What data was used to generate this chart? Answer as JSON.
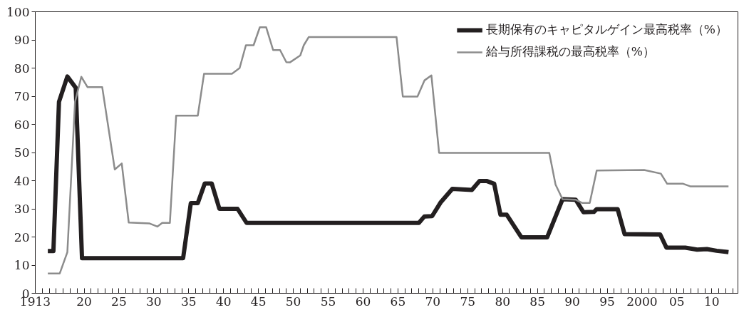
{
  "chart_data": {
    "type": "line",
    "xlim": [
      1913,
      2013.75
    ],
    "ylim": [
      0,
      100
    ],
    "yticks": [
      0,
      10,
      20,
      30,
      40,
      50,
      60,
      70,
      80,
      90,
      100
    ],
    "xticks": [
      {
        "value": 1913,
        "label": "1913"
      },
      {
        "value": 1914,
        "label": null
      },
      {
        "value": 1915,
        "label": null
      },
      {
        "value": 1916,
        "label": null
      },
      {
        "value": 1917,
        "label": null
      },
      {
        "value": 1918,
        "label": null
      },
      {
        "value": 1919,
        "label": null
      },
      {
        "value": 1920,
        "label": "20"
      },
      {
        "value": 1921,
        "label": null
      },
      {
        "value": 1922,
        "label": null
      },
      {
        "value": 1923,
        "label": null
      },
      {
        "value": 1924,
        "label": null
      },
      {
        "value": 1925,
        "label": "25"
      },
      {
        "value": 1926,
        "label": null
      },
      {
        "value": 1927,
        "label": null
      },
      {
        "value": 1928,
        "label": null
      },
      {
        "value": 1929,
        "label": null
      },
      {
        "value": 1930,
        "label": "30"
      },
      {
        "value": 1931,
        "label": null
      },
      {
        "value": 1932,
        "label": null
      },
      {
        "value": 1933,
        "label": null
      },
      {
        "value": 1934,
        "label": null
      },
      {
        "value": 1935,
        "label": "35"
      },
      {
        "value": 1936,
        "label": null
      },
      {
        "value": 1937,
        "label": null
      },
      {
        "value": 1938,
        "label": null
      },
      {
        "value": 1939,
        "label": null
      },
      {
        "value": 1940,
        "label": "40"
      },
      {
        "value": 1941,
        "label": null
      },
      {
        "value": 1942,
        "label": null
      },
      {
        "value": 1943,
        "label": null
      },
      {
        "value": 1944,
        "label": null
      },
      {
        "value": 1945,
        "label": "45"
      },
      {
        "value": 1946,
        "label": null
      },
      {
        "value": 1947,
        "label": null
      },
      {
        "value": 1948,
        "label": null
      },
      {
        "value": 1949,
        "label": null
      },
      {
        "value": 1950,
        "label": "50"
      },
      {
        "value": 1951,
        "label": null
      },
      {
        "value": 1952,
        "label": null
      },
      {
        "value": 1953,
        "label": null
      },
      {
        "value": 1954,
        "label": null
      },
      {
        "value": 1955,
        "label": "55"
      },
      {
        "value": 1956,
        "label": null
      },
      {
        "value": 1957,
        "label": null
      },
      {
        "value": 1958,
        "label": null
      },
      {
        "value": 1959,
        "label": null
      },
      {
        "value": 1960,
        "label": "60"
      },
      {
        "value": 1961,
        "label": null
      },
      {
        "value": 1962,
        "label": null
      },
      {
        "value": 1963,
        "label": null
      },
      {
        "value": 1964,
        "label": null
      },
      {
        "value": 1965,
        "label": "65"
      },
      {
        "value": 1966,
        "label": null
      },
      {
        "value": 1967,
        "label": null
      },
      {
        "value": 1968,
        "label": null
      },
      {
        "value": 1969,
        "label": null
      },
      {
        "value": 1970,
        "label": "70"
      },
      {
        "value": 1971,
        "label": null
      },
      {
        "value": 1972,
        "label": null
      },
      {
        "value": 1973,
        "label": null
      },
      {
        "value": 1974,
        "label": null
      },
      {
        "value": 1975,
        "label": "75"
      },
      {
        "value": 1976,
        "label": null
      },
      {
        "value": 1977,
        "label": null
      },
      {
        "value": 1978,
        "label": null
      },
      {
        "value": 1979,
        "label": null
      },
      {
        "value": 1980,
        "label": "80"
      },
      {
        "value": 1981,
        "label": null
      },
      {
        "value": 1982,
        "label": null
      },
      {
        "value": 1983,
        "label": null
      },
      {
        "value": 1984,
        "label": null
      },
      {
        "value": 1985,
        "label": "85"
      },
      {
        "value": 1986,
        "label": null
      },
      {
        "value": 1987,
        "label": null
      },
      {
        "value": 1988,
        "label": null
      },
      {
        "value": 1989,
        "label": null
      },
      {
        "value": 1990,
        "label": "90"
      },
      {
        "value": 1991,
        "label": null
      },
      {
        "value": 1992,
        "label": null
      },
      {
        "value": 1993,
        "label": null
      },
      {
        "value": 1994,
        "label": null
      },
      {
        "value": 1995,
        "label": "95"
      },
      {
        "value": 1996,
        "label": null
      },
      {
        "value": 1997,
        "label": null
      },
      {
        "value": 1998,
        "label": null
      },
      {
        "value": 1999,
        "label": null
      },
      {
        "value": 2000,
        "label": "2000"
      },
      {
        "value": 2001,
        "label": null
      },
      {
        "value": 2002,
        "label": null
      },
      {
        "value": 2003,
        "label": null
      },
      {
        "value": 2004,
        "label": null
      },
      {
        "value": 2005,
        "label": "05"
      },
      {
        "value": 2006,
        "label": null
      },
      {
        "value": 2007,
        "label": null
      },
      {
        "value": 2008,
        "label": null
      },
      {
        "value": 2009,
        "label": null
      },
      {
        "value": 2010,
        "label": "10"
      },
      {
        "value": 2011,
        "label": null
      },
      {
        "value": 2012,
        "label": null
      },
      {
        "value": 2013,
        "label": null
      }
    ],
    "grid": false,
    "legend": "top right",
    "marker": "none",
    "line_style": "solid",
    "series": [
      {
        "name": "長期保有のキャピタルゲイン最高税率（%）",
        "color": "#231f20",
        "x": [
          1914.8,
          1915.6,
          1916.4,
          1917.6,
          1918.8,
          1919.7,
          1934.2,
          1935.3,
          1936.3,
          1937.3,
          1938.3,
          1939.4,
          1942.0,
          1943.3,
          1968.0,
          1968.8,
          1969.9,
          1971.1,
          1972.8,
          1975.6,
          1976.7,
          1977.7,
          1978.8,
          1979.7,
          1980.6,
          1982.7,
          1986.4,
          1988.6,
          1990.5,
          1991.6,
          1993.1,
          1993.5,
          1996.5,
          1997.5,
          2002.6,
          2003.5,
          2006.2,
          2007.9,
          2009.3,
          2010.7,
          2012.4
        ],
        "values": [
          15,
          15,
          68,
          77,
          73,
          12.5,
          12.5,
          32,
          32,
          39,
          39,
          30,
          30,
          25,
          25,
          27.3,
          27.4,
          32.2,
          37.1,
          36.7,
          39.9,
          39.9,
          38.9,
          27.9,
          27.9,
          19.9,
          19.9,
          33.4,
          33.2,
          28.8,
          28.9,
          29.9,
          29.9,
          21.0,
          20.9,
          16.2,
          16.2,
          15.5,
          15.7,
          15.1,
          14.6
        ]
      },
      {
        "name": "給与所得課税の最高税率（%）",
        "color": "#8c8c8c",
        "x": [
          1914.8,
          1916.5,
          1917.6,
          1918.7,
          1919.6,
          1920.5,
          1922.6,
          1924.4,
          1925.4,
          1926.4,
          1929.4,
          1930.5,
          1931.2,
          1932.3,
          1933.2,
          1936.3,
          1937.2,
          1941.2,
          1942.3,
          1943.2,
          1944.3,
          1945.2,
          1946.1,
          1947.1,
          1948.1,
          1949.0,
          1949.5,
          1951.0,
          1951.5,
          1952.2,
          1964.8,
          1965.7,
          1967.8,
          1968.8,
          1969.8,
          1970.9,
          1986.7,
          1987.6,
          1988.6,
          1990.5,
          1991.4,
          1992.5,
          1993.5,
          2000.3,
          2002.7,
          2003.6,
          2005.9,
          2006.9,
          2012.4
        ],
        "values": [
          7,
          7,
          14.6,
          68,
          76.9,
          73.2,
          73.2,
          44,
          46.1,
          25.1,
          24.8,
          23.7,
          25,
          25,
          63.1,
          63.1,
          78,
          78,
          80,
          88.1,
          88.1,
          94.5,
          94.5,
          86.4,
          86.4,
          82.1,
          82,
          84.5,
          88.1,
          91,
          91,
          69.9,
          69.9,
          75.6,
          77.4,
          49.9,
          49.9,
          38.6,
          33.4,
          33.2,
          32.1,
          32.1,
          43.6,
          43.8,
          42.5,
          38.9,
          38.9,
          38,
          38
        ]
      }
    ]
  }
}
